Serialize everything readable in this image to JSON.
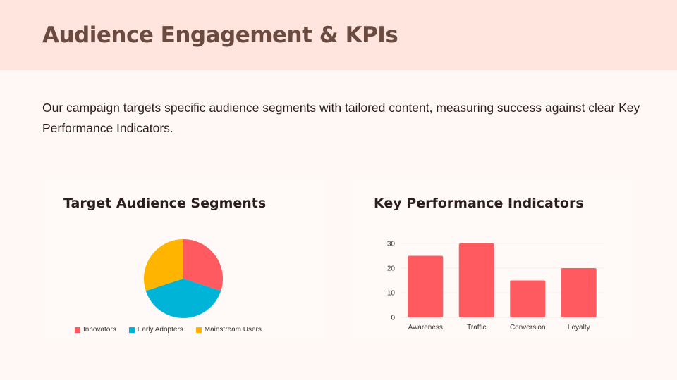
{
  "header": {
    "title": "Audience Engagement & KPIs"
  },
  "intro": "Our campaign targets specific audience segments with tailored content, measuring success against clear Key Performance Indicators.",
  "chart_data": [
    {
      "type": "pie",
      "title": "Target Audience Segments",
      "categories": [
        "Innovators",
        "Early Adopters",
        "Mainstream Users"
      ],
      "values": [
        30,
        40,
        30
      ],
      "colors": [
        "#ff5a5f",
        "#00b4d8",
        "#ffb400"
      ],
      "legend": "bottom"
    },
    {
      "type": "bar",
      "title": "Key Performance Indicators",
      "categories": [
        "Awareness",
        "Traffic",
        "Conversion",
        "Loyalty"
      ],
      "values": [
        25,
        30,
        15,
        20
      ],
      "color": "#ff5a5f",
      "ylim": [
        0,
        30
      ],
      "yticks": [
        0,
        10,
        20,
        30
      ],
      "grid": true
    }
  ]
}
